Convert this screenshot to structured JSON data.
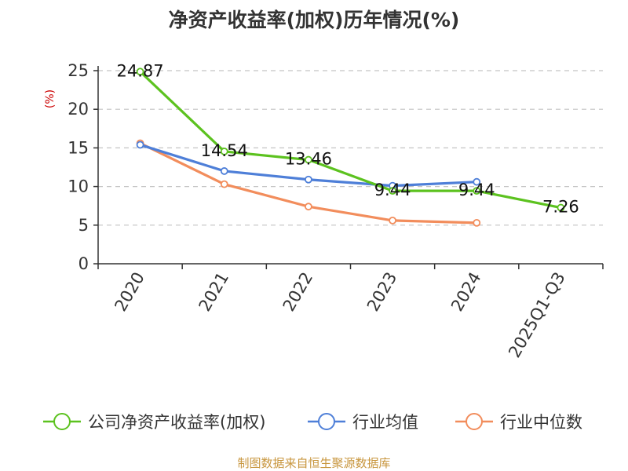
{
  "chart_data": {
    "type": "line",
    "title": "净资产收益率(加权)历年情况(%)",
    "ylabel": "(%)",
    "xlabel": "",
    "ylim": [
      0,
      25
    ],
    "yticks": [
      0,
      5,
      10,
      15,
      20,
      25
    ],
    "categories": [
      "2020",
      "2021",
      "2022",
      "2023",
      "2024",
      "2025Q1-Q3"
    ],
    "grid": "horizontal-dashed",
    "legend_position": "bottom",
    "series": [
      {
        "name": "公司净资产收益率(加权)",
        "color": "#5cc21f",
        "values": [
          24.87,
          14.54,
          13.46,
          9.44,
          9.44,
          7.26
        ],
        "labels": [
          "24.87",
          "14.54",
          "13.46",
          "9.44",
          "9.44",
          "7.26"
        ]
      },
      {
        "name": "行业均值",
        "color": "#4e7fd8",
        "values": [
          15.4,
          12.0,
          10.9,
          10.1,
          10.6,
          null
        ]
      },
      {
        "name": "行业中位数",
        "color": "#f28d5c",
        "values": [
          15.6,
          10.3,
          7.4,
          5.6,
          5.3,
          null
        ]
      }
    ],
    "source": "制图数据来自恒生聚源数据库"
  }
}
